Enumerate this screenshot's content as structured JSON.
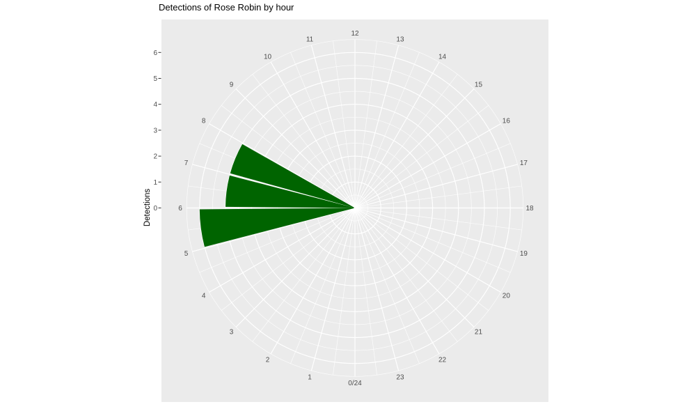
{
  "chart_data": {
    "type": "polar_bar",
    "title": "Detections of Rose Robin by hour",
    "ylabel": "Detections",
    "theta_axis": "hour of day",
    "zero_angle_position": "bottom",
    "direction": "clockwise",
    "hour_labels": [
      "0/24",
      "1",
      "2",
      "3",
      "4",
      "5",
      "6",
      "7",
      "8",
      "9",
      "10",
      "11",
      "12",
      "13",
      "14",
      "15",
      "16",
      "17",
      "18",
      "19",
      "20",
      "21",
      "22",
      "23"
    ],
    "values_per_hour_bin": [
      0,
      0,
      0,
      0,
      0,
      6,
      5,
      5,
      0,
      0,
      0,
      0,
      0,
      0,
      0,
      0,
      0,
      0,
      0,
      0,
      0,
      0,
      0,
      0
    ],
    "r_tick_labels": [
      "0",
      "1",
      "2",
      "3",
      "4",
      "5",
      "6"
    ],
    "r_max": 6.5,
    "grid": "major circles at integers, minor at halves; radial lines every hour (major) and half hour (minor)",
    "colors": {
      "bar_fill": "#006400",
      "panel_bg": "#EBEBEB",
      "grid_line": "#FFFFFF",
      "axis_text": "#4D4D4D",
      "tick_mark": "#333333",
      "title_text": "#000000"
    }
  }
}
